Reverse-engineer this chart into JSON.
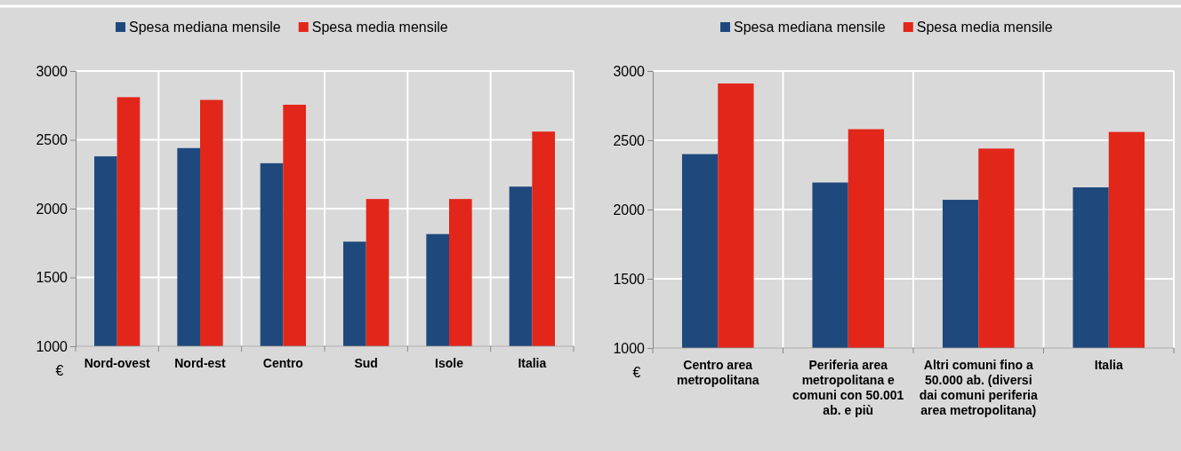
{
  "chart_data": [
    {
      "type": "bar",
      "categories": [
        "Nord-ovest",
        "Nord-est",
        "Centro",
        "Sud",
        "Isole",
        "Italia"
      ],
      "series": [
        {
          "name": "Spesa mediana mensile",
          "color": "#1f497d",
          "values": [
            2380,
            2440,
            2330,
            1760,
            1815,
            2160
          ]
        },
        {
          "name": "Spesa media mensile",
          "color": "#e3261a",
          "values": [
            2810,
            2790,
            2755,
            2070,
            2070,
            2560
          ]
        }
      ],
      "ylabel": "€",
      "ylim": [
        1000,
        3000
      ],
      "yticks": [
        1000,
        1500,
        2000,
        2500,
        3000
      ],
      "grid": true,
      "legend": "top"
    },
    {
      "type": "bar",
      "categories": [
        "Centro area metropolitana",
        "Periferia area metropolitana e comuni con 50.001 ab. e più",
        "Altri comuni fino a 50.000 ab. (diversi dai comuni periferia area metropolitana)",
        "Italia"
      ],
      "series": [
        {
          "name": "Spesa mediana mensile",
          "color": "#1f497d",
          "values": [
            2400,
            2195,
            2070,
            2160
          ]
        },
        {
          "name": "Spesa media mensile",
          "color": "#e3261a",
          "values": [
            2910,
            2580,
            2440,
            2560
          ]
        }
      ],
      "ylabel": "€",
      "ylim": [
        1000,
        3000
      ],
      "yticks": [
        1000,
        1500,
        2000,
        2500,
        3000
      ],
      "grid": true,
      "legend": "top"
    }
  ]
}
